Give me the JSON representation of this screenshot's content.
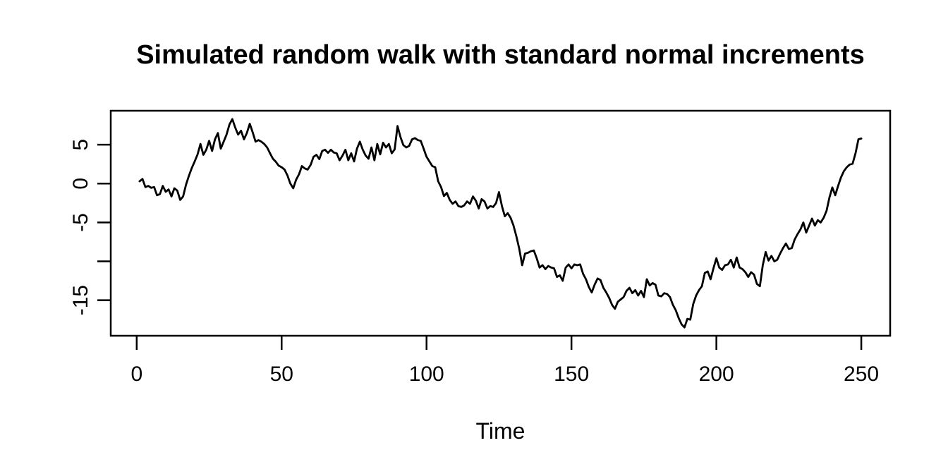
{
  "page": {
    "background_color": "#ffffff",
    "foreground_color": "#000000"
  },
  "chart_data": {
    "type": "line",
    "title": "Simulated random walk with standard normal increments",
    "xlabel": "Time",
    "ylabel": "",
    "legend": "none",
    "grid": false,
    "line_color": "#000000",
    "axis_color": "#000000",
    "x_start": 1,
    "x_step": 1,
    "xlim": [
      -8.96,
      259.96
    ],
    "ylim": [
      -19.57,
      9.37
    ],
    "xticks": [
      {
        "v": 0,
        "label": "0"
      },
      {
        "v": 50,
        "label": "50"
      },
      {
        "v": 100,
        "label": "100"
      },
      {
        "v": 150,
        "label": "150"
      },
      {
        "v": 200,
        "label": "200"
      },
      {
        "v": 250,
        "label": "250"
      }
    ],
    "yticks": [
      {
        "v": 5,
        "label": "5"
      },
      {
        "v": 0,
        "label": "0"
      },
      {
        "v": -5,
        "label": "-5"
      },
      {
        "v": -10,
        "label": ""
      },
      {
        "v": -15,
        "label": "-15"
      }
    ],
    "values": [
      0.3,
      0.6,
      -0.45,
      -0.3,
      -0.55,
      -0.45,
      -1.5,
      -1.35,
      -0.3,
      -1.05,
      -0.75,
      -1.65,
      -0.6,
      -0.9,
      -2.1,
      -1.65,
      -0.15,
      1.0,
      2.0,
      2.85,
      3.75,
      5.1,
      3.7,
      4.35,
      5.5,
      4.2,
      5.7,
      6.5,
      4.5,
      5.4,
      6.3,
      7.6,
      8.3,
      7.2,
      6.3,
      6.8,
      5.7,
      6.5,
      7.7,
      6.6,
      5.4,
      5.6,
      5.4,
      5.1,
      4.65,
      3.9,
      3.2,
      2.8,
      2.3,
      2.1,
      1.8,
      1.05,
      0.0,
      -0.6,
      0.5,
      1.2,
      2.25,
      1.95,
      1.8,
      2.4,
      3.45,
      3.7,
      3.15,
      4.2,
      4.35,
      3.95,
      4.35,
      4.0,
      3.9,
      3.0,
      3.6,
      4.35,
      3.0,
      3.9,
      2.85,
      4.5,
      5.4,
      4.35,
      3.6,
      3.2,
      4.65,
      3.0,
      5.1,
      3.75,
      5.25,
      4.65,
      5.1,
      3.9,
      4.4,
      7.4,
      6.0,
      4.95,
      4.65,
      4.85,
      5.7,
      5.85,
      5.6,
      5.5,
      4.5,
      3.45,
      2.85,
      2.25,
      2.1,
      0.3,
      -0.45,
      -1.6,
      -1.2,
      -2.1,
      -2.6,
      -2.3,
      -2.9,
      -3.0,
      -2.8,
      -2.3,
      -2.6,
      -1.65,
      -2.2,
      -3.2,
      -2.0,
      -2.3,
      -3.2,
      -2.9,
      -3.0,
      -2.5,
      -1.1,
      -2.9,
      -4.2,
      -3.8,
      -4.4,
      -5.4,
      -6.8,
      -8.4,
      -10.5,
      -9.0,
      -8.9,
      -8.7,
      -8.6,
      -9.6,
      -10.8,
      -10.5,
      -11.0,
      -10.6,
      -10.8,
      -10.9,
      -12.0,
      -11.8,
      -12.5,
      -10.8,
      -10.4,
      -10.9,
      -10.4,
      -10.5,
      -10.4,
      -11.6,
      -12.3,
      -13.3,
      -14.0,
      -13.0,
      -12.2,
      -12.4,
      -13.4,
      -14.0,
      -14.7,
      -15.6,
      -16.1,
      -15.2,
      -14.9,
      -14.6,
      -13.8,
      -13.4,
      -14.1,
      -13.7,
      -14.4,
      -13.8,
      -14.6,
      -12.3,
      -13.1,
      -12.8,
      -13.0,
      -14.4,
      -14.5,
      -14.1,
      -14.2,
      -14.6,
      -15.6,
      -16.3,
      -17.3,
      -18.1,
      -18.5,
      -17.4,
      -17.5,
      -15.5,
      -14.4,
      -13.7,
      -13.2,
      -11.5,
      -11.3,
      -12.3,
      -10.9,
      -9.6,
      -10.8,
      -11.1,
      -10.5,
      -10.4,
      -9.8,
      -10.8,
      -9.5,
      -10.8,
      -11.0,
      -11.4,
      -12.0,
      -11.4,
      -11.7,
      -12.9,
      -13.2,
      -10.5,
      -8.8,
      -9.9,
      -9.3,
      -10.0,
      -9.8,
      -9.0,
      -8.3,
      -7.7,
      -8.4,
      -8.3,
      -7.2,
      -6.5,
      -5.9,
      -5.0,
      -6.3,
      -5.4,
      -4.5,
      -5.4,
      -4.7,
      -5.0,
      -4.4,
      -3.5,
      -1.8,
      -0.5,
      -1.5,
      -0.3,
      0.8,
      1.6,
      2.1,
      2.45,
      2.55,
      3.9,
      5.7,
      5.8
    ]
  }
}
